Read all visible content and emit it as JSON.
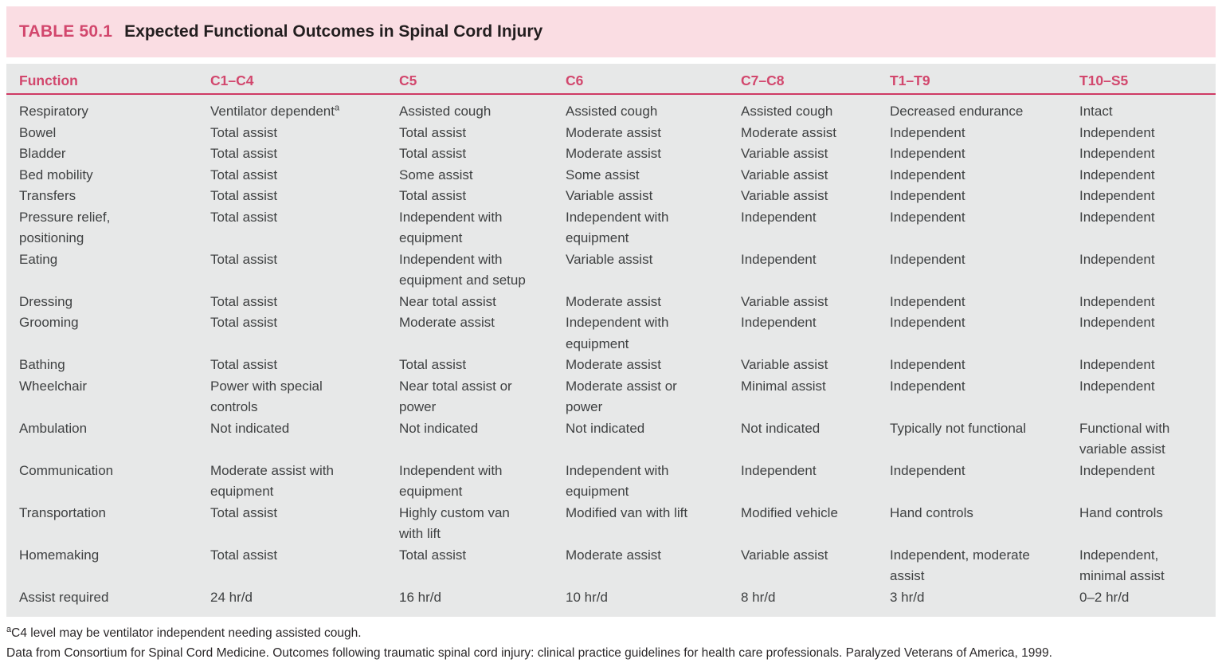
{
  "title": {
    "label": "TABLE 50.1",
    "text": "Expected Functional Outcomes in Spinal Cord Injury"
  },
  "colors": {
    "band_pink": "#fadde3",
    "accent_pink": "#d2476d",
    "rule_pink": "#cf3a64",
    "table_gray": "#e7e8e8",
    "body_text": "#3f4142"
  },
  "table": {
    "columns": [
      "Function",
      "C1–C4",
      "C5",
      "C6",
      "C7–C8",
      "T1–T9",
      "T10–S5"
    ],
    "rows": [
      [
        "Respiratory",
        {
          "text": "Ventilator dependent",
          "sup": "a"
        },
        "Assisted cough",
        "Assisted cough",
        "Assisted cough",
        "Decreased endurance",
        "Intact"
      ],
      [
        "Bowel",
        "Total assist",
        "Total assist",
        "Moderate assist",
        "Moderate assist",
        "Independent",
        "Independent"
      ],
      [
        "Bladder",
        "Total assist",
        "Total assist",
        "Moderate assist",
        "Variable assist",
        "Independent",
        "Independent"
      ],
      [
        "Bed mobility",
        "Total assist",
        "Some assist",
        "Some assist",
        "Variable assist",
        "Independent",
        "Independent"
      ],
      [
        "Transfers",
        "Total assist",
        "Total assist",
        "Variable assist",
        "Variable assist",
        "Independent",
        "Independent"
      ],
      [
        "Pressure relief,\npositioning",
        "Total assist",
        "Independent with\nequipment",
        "Independent with\nequipment",
        "Independent",
        "Independent",
        "Independent"
      ],
      [
        "Eating",
        "Total assist",
        "Independent with\nequipment and setup",
        "Variable assist",
        "Independent",
        "Independent",
        "Independent"
      ],
      [
        "Dressing",
        "Total assist",
        "Near total assist",
        "Moderate assist",
        "Variable assist",
        "Independent",
        "Independent"
      ],
      [
        "Grooming",
        "Total assist",
        "Moderate assist",
        "Independent with\nequipment",
        "Independent",
        "Independent",
        "Independent"
      ],
      [
        "Bathing",
        "Total assist",
        "Total assist",
        "Moderate assist",
        "Variable assist",
        "Independent",
        "Independent"
      ],
      [
        "Wheelchair",
        "Power with special\ncontrols",
        "Near total assist or\npower",
        "Moderate assist or\npower",
        "Minimal assist",
        "Independent",
        "Independent"
      ],
      [
        "Ambulation",
        "Not indicated",
        "Not indicated",
        "Not indicated",
        "Not indicated",
        "Typically not functional",
        "Functional with\nvariable assist"
      ],
      [
        "Communication",
        "Moderate assist with\nequipment",
        "Independent with\nequipment",
        "Independent with\nequipment",
        "Independent",
        "Independent",
        "Independent"
      ],
      [
        "Transportation",
        "Total assist",
        "Highly custom van\nwith lift",
        "Modified van with lift",
        "Modified vehicle",
        "Hand controls",
        "Hand controls"
      ],
      [
        "Homemaking",
        "Total assist",
        "Total assist",
        "Moderate assist",
        "Variable assist",
        "Independent, moderate\nassist",
        "Independent,\nminimal assist"
      ],
      [
        "Assist required",
        "24 hr/d",
        "16 hr/d",
        "10 hr/d",
        "8 hr/d",
        "3 hr/d",
        "0–2 hr/d"
      ]
    ]
  },
  "footnotes": [
    {
      "sup": "a",
      "text": "C4 level may be ventilator independent needing assisted cough."
    },
    {
      "sup": "",
      "text": "Data from Consortium for Spinal Cord Medicine. Outcomes following traumatic spinal cord injury: clinical practice guidelines for health care professionals. Paralyzed Veterans of America, 1999."
    }
  ]
}
